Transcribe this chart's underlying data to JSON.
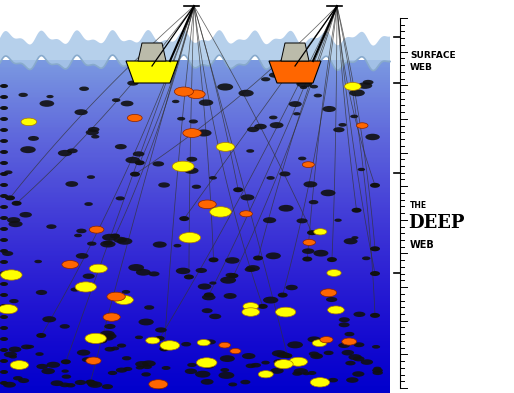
{
  "title": "",
  "bg_color": "#ffffff",
  "water_light_color": "#8ab4e8",
  "water_deep_color": "#0000cc",
  "boat1_color": "#ffff00",
  "boat2_color": "#ff6600",
  "fish_yellow": "#ffff00",
  "fish_orange": "#ff6600",
  "fish_black": "#111111",
  "surface_label": "SURFACE\nWEB",
  "deep_label": "THE\nDEEP\nWEB",
  "fig_width": 5.14,
  "fig_height": 3.93,
  "dpi": 100
}
